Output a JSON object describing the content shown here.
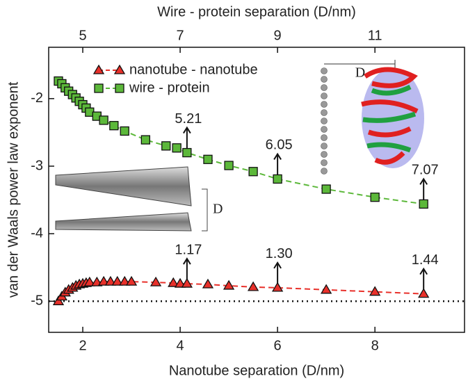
{
  "chart_data": {
    "type": "scatter",
    "xlabel": "Nanotube separation (D/nm)",
    "x2label": "Wire - protein separation (D/nm)",
    "ylabel": "van der Waals power law exponent",
    "xlim": [
      1.3,
      9.84
    ],
    "xticks": [
      2,
      4,
      6,
      8
    ],
    "x2lim": [
      4.3,
      12.84
    ],
    "x2ticks": [
      5,
      7,
      9,
      11
    ],
    "ylim": [
      -5.46,
      -1.24
    ],
    "yticks": [
      -2,
      -3,
      -4,
      -5
    ],
    "reference_line": -5,
    "legend": "upper left",
    "series": [
      {
        "name": "nanotube - nanotube",
        "color": "#e8302a",
        "marker": "triangle",
        "x": [
          1.5,
          1.57,
          1.64,
          1.71,
          1.79,
          1.86,
          1.93,
          2.0,
          2.07,
          2.14,
          2.29,
          2.43,
          2.57,
          2.71,
          2.86,
          3.0,
          3.5,
          3.86,
          4.0,
          4.14,
          4.57,
          5.0,
          5.5,
          6.0,
          7.0,
          8.0,
          9.0
        ],
        "values": [
          -5.0,
          -4.93,
          -4.87,
          -4.83,
          -4.8,
          -4.77,
          -4.75,
          -4.74,
          -4.73,
          -4.72,
          -4.72,
          -4.71,
          -4.71,
          -4.71,
          -4.71,
          -4.71,
          -4.72,
          -4.73,
          -4.74,
          -4.74,
          -4.75,
          -4.77,
          -4.79,
          -4.8,
          -4.83,
          -4.86,
          -4.89
        ],
        "annotations": [
          "1.17",
          "1.30",
          "1.44"
        ]
      },
      {
        "name": "wire - protein",
        "color": "#5cb83a",
        "marker": "square",
        "x": [
          1.5,
          1.57,
          1.64,
          1.71,
          1.79,
          1.86,
          1.93,
          2.0,
          2.07,
          2.14,
          2.29,
          2.43,
          2.64,
          2.86,
          3.29,
          3.71,
          3.93,
          4.14,
          4.57,
          5.0,
          5.5,
          6.0,
          7.0,
          8.0,
          9.0
        ],
        "values": [
          -1.74,
          -1.78,
          -1.84,
          -1.89,
          -1.94,
          -1.99,
          -2.04,
          -2.09,
          -2.14,
          -2.2,
          -2.26,
          -2.32,
          -2.4,
          -2.48,
          -2.61,
          -2.7,
          -2.73,
          -2.8,
          -2.9,
          -2.99,
          -3.08,
          -3.19,
          -3.34,
          -3.46,
          -3.56
        ],
        "annotations": [
          "5.21",
          "6.05",
          "7.07"
        ]
      }
    ],
    "inset_labels": [
      "D",
      "D"
    ]
  }
}
